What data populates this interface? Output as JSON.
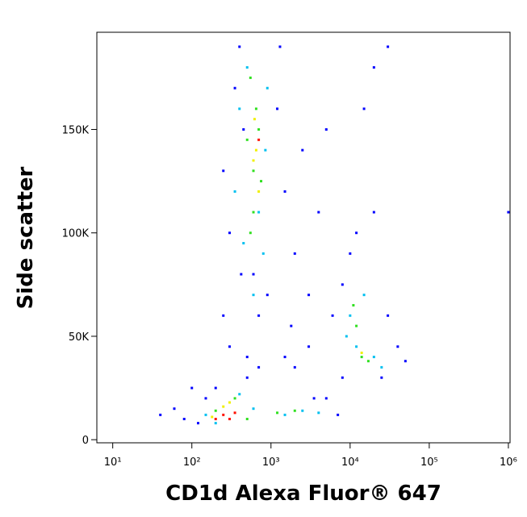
{
  "chart_data": {
    "type": "scatter",
    "x_label": "CD1d Alexa Fluor® 647",
    "y_label": "Side scatter",
    "xscale": "log",
    "xlim": [
      6.3,
      1050000
    ],
    "xticks": [
      {
        "value": 10,
        "label": "10¹"
      },
      {
        "value": 100,
        "label": "10²"
      },
      {
        "value": 1000,
        "label": "10³"
      },
      {
        "value": 10000,
        "label": "10⁴"
      },
      {
        "value": 100000,
        "label": "10⁵"
      },
      {
        "value": 1000000,
        "label": "10⁶"
      }
    ],
    "ylim": [
      -1500,
      197000
    ],
    "yticks": [
      0,
      {
        "value": 50000,
        "label": "50K"
      },
      {
        "value": 100000,
        "label": "100K"
      },
      {
        "value": 150000,
        "label": "150K"
      }
    ],
    "series": [
      {
        "color": "#0000ff",
        "x": [
          60,
          80,
          150,
          40,
          200,
          500,
          1500,
          2000,
          3000,
          5000,
          250,
          300,
          250,
          350,
          400,
          1200,
          1500,
          2000,
          3000,
          6000,
          8000,
          10000,
          12000,
          20000,
          30000,
          40000,
          50000,
          25000,
          8000,
          2500,
          5000,
          20000,
          30000,
          1000000,
          700,
          600,
          900,
          450,
          420,
          1300,
          3500,
          7000,
          120,
          100,
          1800,
          4000,
          15000,
          500,
          300,
          700
        ],
        "values": [
          15000,
          10000,
          20000,
          12000,
          25000,
          30000,
          40000,
          35000,
          45000,
          20000,
          60000,
          100000,
          130000,
          170000,
          190000,
          160000,
          120000,
          90000,
          70000,
          60000,
          75000,
          90000,
          100000,
          110000,
          60000,
          45000,
          38000,
          30000,
          30000,
          140000,
          150000,
          180000,
          190000,
          110000,
          60000,
          80000,
          70000,
          150000,
          80000,
          190000,
          20000,
          12000,
          8000,
          25000,
          55000,
          110000,
          160000,
          40000,
          45000,
          35000
        ]
      },
      {
        "color": "#00c0f0",
        "x": [
          350,
          400,
          500,
          450,
          800,
          850,
          900,
          600,
          700,
          150,
          400,
          600,
          1500,
          2500,
          4000,
          10000,
          12000,
          20000,
          15000,
          9000,
          25000,
          200
        ],
        "values": [
          120000,
          160000,
          180000,
          95000,
          90000,
          140000,
          170000,
          70000,
          110000,
          12000,
          22000,
          15000,
          12000,
          14000,
          13000,
          60000,
          45000,
          40000,
          70000,
          50000,
          35000,
          8000
        ]
      },
      {
        "color": "#30e020",
        "x": [
          550,
          600,
          650,
          550,
          750,
          700,
          600,
          200,
          350,
          500,
          1200,
          2000,
          14000,
          12000,
          17000,
          11000,
          500
        ],
        "values": [
          100000,
          130000,
          160000,
          175000,
          125000,
          150000,
          110000,
          14000,
          20000,
          10000,
          13000,
          14000,
          40000,
          55000,
          38000,
          65000,
          145000
        ]
      },
      {
        "color": "#f0f000",
        "x": [
          650,
          700,
          620,
          250,
          300,
          180,
          14000,
          600
        ],
        "values": [
          140000,
          120000,
          155000,
          16000,
          18000,
          11000,
          42000,
          135000
        ]
      },
      {
        "color": "#ff1000",
        "x": [
          250,
          300,
          350,
          200,
          700
        ],
        "values": [
          12000,
          10000,
          13000,
          10000,
          145000
        ]
      }
    ]
  }
}
